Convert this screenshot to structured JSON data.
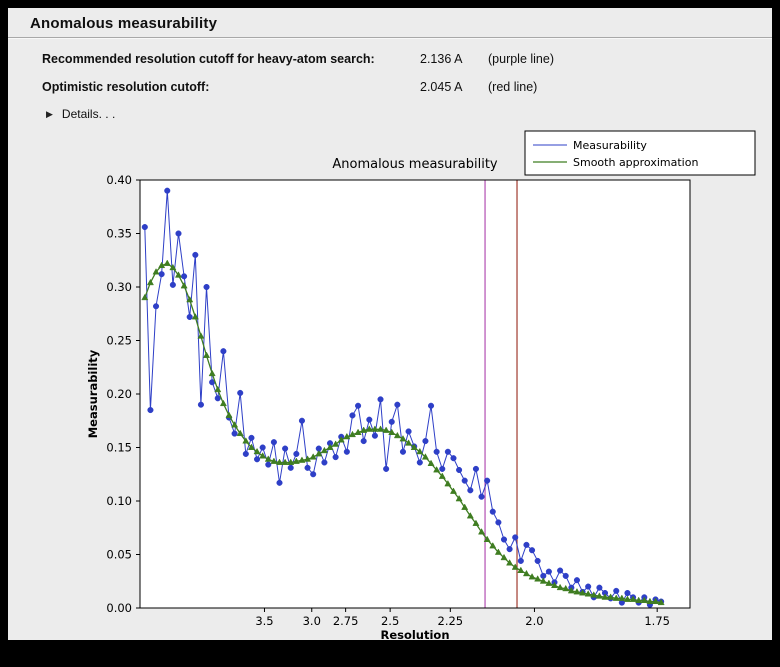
{
  "window": {
    "title": "Anomalous measurability"
  },
  "header": {
    "rows": [
      {
        "label": "Recommended resolution cutoff for heavy-atom search:",
        "value": "2.136 A",
        "note": "(purple line)"
      },
      {
        "label": "Optimistic resolution cutoff:",
        "value": "2.045 A",
        "note": "(red line)"
      }
    ],
    "details_label": "Details. . ."
  },
  "chart_data": {
    "type": "line",
    "title": "Anomalous measurability",
    "xlabel": "Resolution",
    "ylabel": "Measurability",
    "ylim": [
      0.0,
      0.4
    ],
    "ytick_labels": [
      "0.00",
      "0.05",
      "0.10",
      "0.15",
      "0.20",
      "0.25",
      "0.30",
      "0.35",
      "0.40"
    ],
    "xticks": [
      {
        "label": "3.5",
        "d": 3.5
      },
      {
        "label": "3.0",
        "d": 3.0
      },
      {
        "label": "2.75",
        "d": 2.75
      },
      {
        "label": "2.5",
        "d": 2.5
      },
      {
        "label": "2.25",
        "d": 2.25
      },
      {
        "label": "2.0",
        "d": 2.0
      },
      {
        "label": "1.75",
        "d": 1.75
      }
    ],
    "x_axis_scale": "1/d^2 (resolution in Angstrom, decreasing to the right)",
    "x_range_inv_d2": [
      0.004,
      0.347
    ],
    "x_inv_d2": [
      0.007,
      0.0105,
      0.014,
      0.0175,
      0.021,
      0.0245,
      0.028,
      0.0315,
      0.035,
      0.0385,
      0.042,
      0.0455,
      0.049,
      0.0525,
      0.056,
      0.0595,
      0.063,
      0.0665,
      0.07,
      0.0735,
      0.077,
      0.0805,
      0.084,
      0.0875,
      0.091,
      0.0945,
      0.098,
      0.1015,
      0.105,
      0.1085,
      0.112,
      0.1155,
      0.119,
      0.1225,
      0.126,
      0.1295,
      0.133,
      0.1365,
      0.14,
      0.1435,
      0.147,
      0.1505,
      0.154,
      0.1575,
      0.161,
      0.1645,
      0.168,
      0.1715,
      0.175,
      0.1785,
      0.182,
      0.1855,
      0.189,
      0.1925,
      0.196,
      0.1995,
      0.203,
      0.2065,
      0.21,
      0.2135,
      0.217,
      0.2205,
      0.224,
      0.2275,
      0.231,
      0.2345,
      0.238,
      0.2415,
      0.245,
      0.2485,
      0.252,
      0.2555,
      0.259,
      0.2625,
      0.266,
      0.2695,
      0.273,
      0.2765,
      0.28,
      0.2835,
      0.287,
      0.2905,
      0.294,
      0.2975,
      0.301,
      0.3045,
      0.308,
      0.3115,
      0.315,
      0.3185,
      0.322,
      0.3255,
      0.329
    ],
    "series": [
      {
        "name": "Measurability",
        "color": "#2e3fc7",
        "marker": "circle",
        "values": [
          0.356,
          0.185,
          0.282,
          0.312,
          0.39,
          0.302,
          0.35,
          0.31,
          0.272,
          0.33,
          0.19,
          0.3,
          0.211,
          0.196,
          0.24,
          0.178,
          0.163,
          0.201,
          0.144,
          0.159,
          0.139,
          0.15,
          0.134,
          0.155,
          0.117,
          0.149,
          0.131,
          0.144,
          0.175,
          0.131,
          0.125,
          0.149,
          0.136,
          0.154,
          0.141,
          0.16,
          0.146,
          0.18,
          0.189,
          0.156,
          0.176,
          0.161,
          0.195,
          0.13,
          0.174,
          0.19,
          0.146,
          0.165,
          0.151,
          0.136,
          0.156,
          0.189,
          0.146,
          0.13,
          0.146,
          0.14,
          0.129,
          0.119,
          0.11,
          0.13,
          0.104,
          0.119,
          0.09,
          0.08,
          0.064,
          0.055,
          0.066,
          0.044,
          0.059,
          0.054,
          0.044,
          0.03,
          0.034,
          0.024,
          0.035,
          0.03,
          0.019,
          0.026,
          0.015,
          0.02,
          0.01,
          0.019,
          0.014,
          0.009,
          0.016,
          0.005,
          0.014,
          0.01,
          0.005,
          0.01,
          0.003,
          0.008,
          0.006
        ]
      },
      {
        "name": "Smooth approximation",
        "color": "#3f7d21",
        "marker": "triangle",
        "values": [
          0.29,
          0.304,
          0.314,
          0.32,
          0.322,
          0.318,
          0.311,
          0.301,
          0.288,
          0.272,
          0.254,
          0.236,
          0.219,
          0.204,
          0.191,
          0.18,
          0.171,
          0.163,
          0.156,
          0.15,
          0.146,
          0.142,
          0.139,
          0.137,
          0.136,
          0.136,
          0.136,
          0.137,
          0.138,
          0.139,
          0.141,
          0.144,
          0.147,
          0.15,
          0.153,
          0.157,
          0.16,
          0.162,
          0.164,
          0.166,
          0.167,
          0.167,
          0.167,
          0.166,
          0.164,
          0.161,
          0.158,
          0.154,
          0.15,
          0.146,
          0.141,
          0.135,
          0.129,
          0.123,
          0.116,
          0.109,
          0.102,
          0.094,
          0.086,
          0.079,
          0.071,
          0.064,
          0.058,
          0.052,
          0.047,
          0.042,
          0.038,
          0.035,
          0.032,
          0.029,
          0.027,
          0.025,
          0.023,
          0.021,
          0.019,
          0.018,
          0.016,
          0.015,
          0.014,
          0.013,
          0.012,
          0.011,
          0.01,
          0.01,
          0.009,
          0.009,
          0.008,
          0.008,
          0.007,
          0.007,
          0.006,
          0.006,
          0.005
        ]
      }
    ],
    "vlines": [
      {
        "name": "purple line",
        "resolution_A": 2.136,
        "color": "#b24fb2"
      },
      {
        "name": "red line",
        "resolution_A": 2.045,
        "color": "#a03a2e"
      }
    ],
    "legend": {
      "position": "top-right",
      "entries": [
        "Measurability",
        "Smooth approximation"
      ]
    },
    "grid": false,
    "plot_background": "#ffffff",
    "figure_background": "#ececec"
  }
}
